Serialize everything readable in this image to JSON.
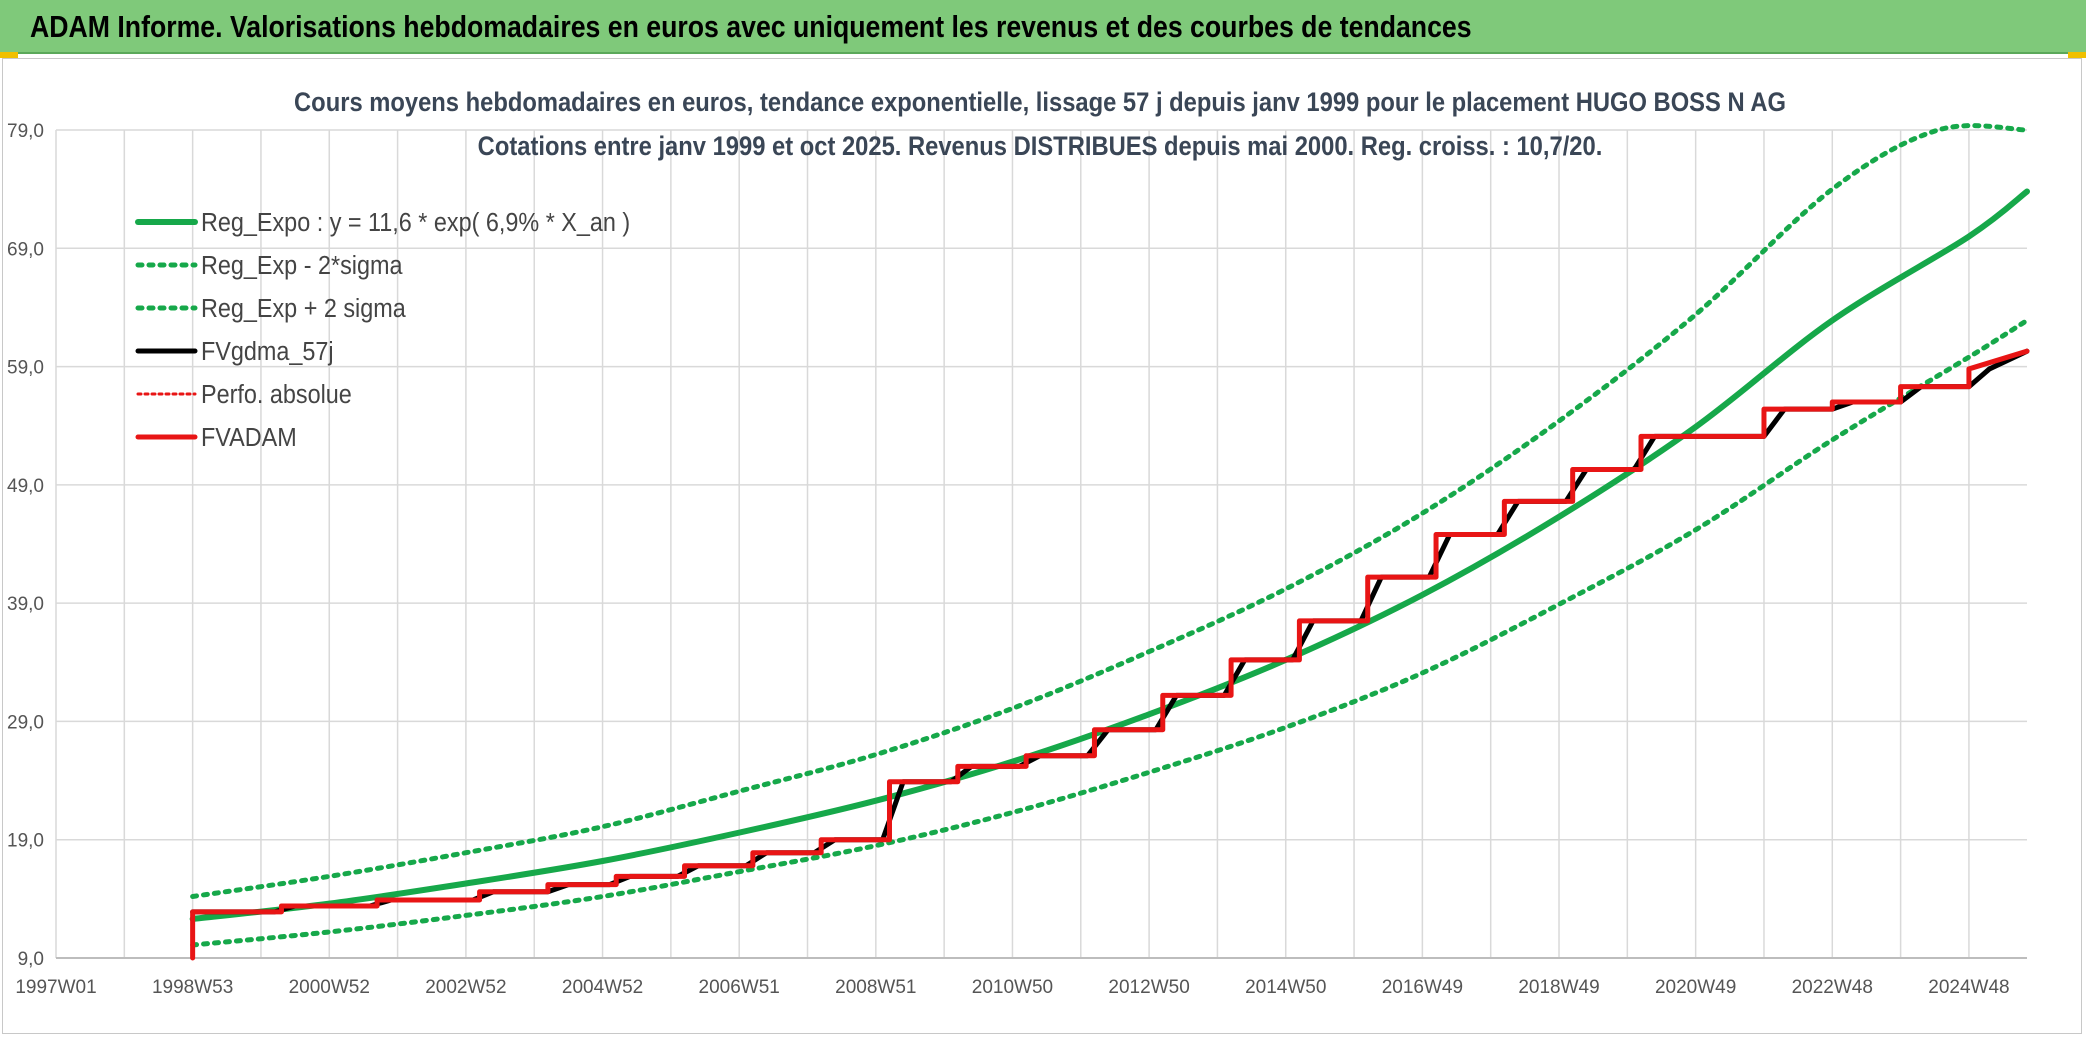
{
  "header": {
    "title": "ADAM Informe. Valorisations hebdomadaires en euros avec uniquement les revenus et des courbes de tendances"
  },
  "chart_data": {
    "type": "line",
    "title_line1": "Cours moyens hebdomadaires en euros, tendance exponentielle, lissage 57 j depuis janv 1999 pour le placement HUGO BOSS N AG",
    "title_line2": "Cotations entre janv 1999 et oct 2025. Revenus DISTRIBUES depuis mai 2000. Reg. croiss. : 10,7/20.",
    "ylim": [
      9,
      79
    ],
    "xlim": [
      1997.0,
      2025.85
    ],
    "y_ticks": [
      "79,0",
      "69,0",
      "59,0",
      "49,0",
      "39,0",
      "29,0",
      "19,0",
      "9,0"
    ],
    "y_tick_values": [
      79,
      69,
      59,
      49,
      39,
      29,
      19,
      9
    ],
    "x_ticks": [
      "1997W01",
      "1998W53",
      "2000W52",
      "2002W52",
      "2004W52",
      "2006W51",
      "2008W51",
      "2010W50",
      "2012W50",
      "2014W50",
      "2016W49",
      "2018W49",
      "2020W49",
      "2022W48",
      "2024W48"
    ],
    "x_tick_values": [
      1997.0,
      1999.0,
      2001.0,
      2003.0,
      2005.0,
      2007.0,
      2009.0,
      2011.0,
      2013.0,
      2015.0,
      2017.0,
      2019.0,
      2021.0,
      2023.0,
      2025.0
    ],
    "legend_position": "top-left",
    "grid": true,
    "colors": {
      "green": "#16a84a",
      "red": "#e81515",
      "black": "#000000"
    },
    "series": [
      {
        "name": "Reg_Expo : y = 11,6 * exp( 6,9% *  X_an )",
        "style": "solid-green",
        "x": [
          1999.0,
          2001.0,
          2003.0,
          2005.0,
          2007.0,
          2009.0,
          2011.0,
          2013.0,
          2015.0,
          2017.0,
          2019.0,
          2021.0,
          2023.0,
          2025.0,
          2025.85
        ],
        "y": [
          12.3,
          13.6,
          15.3,
          17.2,
          19.6,
          22.3,
          25.6,
          29.6,
          34.2,
          39.7,
          46.3,
          53.9,
          62.9,
          70.0,
          73.8
        ]
      },
      {
        "name": "Reg_Exp - 2*sigma",
        "style": "dotted-green",
        "x": [
          1999.0,
          2001.0,
          2003.0,
          2005.0,
          2007.0,
          2009.0,
          2011.0,
          2013.0,
          2015.0,
          2017.0,
          2019.0,
          2021.0,
          2023.0,
          2025.0,
          2025.85
        ],
        "y": [
          10.1,
          11.2,
          12.6,
          14.2,
          16.3,
          18.5,
          21.3,
          24.7,
          28.5,
          33.1,
          38.9,
          45.2,
          52.8,
          59.8,
          62.9
        ]
      },
      {
        "name": "Reg_Exp + 2 sigma",
        "style": "dotted-green",
        "x": [
          1999.0,
          2001.0,
          2003.0,
          2005.0,
          2007.0,
          2009.0,
          2011.0,
          2013.0,
          2015.0,
          2017.0,
          2019.0,
          2021.0,
          2023.0,
          2024.55,
          2025.85
        ],
        "y": [
          14.2,
          15.9,
          17.9,
          20.1,
          23.1,
          26.2,
          30.1,
          34.9,
          40.2,
          46.6,
          54.4,
          63.4,
          74.0,
          79.0,
          79.0
        ]
      },
      {
        "name": "FVgdma_57j",
        "style": "solid-black",
        "x": [
          1999.0,
          2000.2,
          2000.5,
          2001.6,
          2001.9,
          2003.1,
          2003.4,
          2004.2,
          2004.5,
          2005.1,
          2005.4,
          2006.1,
          2006.4,
          2007.1,
          2007.4,
          2008.1,
          2008.4,
          2009.1,
          2009.4,
          2010.1,
          2010.4,
          2011.1,
          2011.4,
          2012.1,
          2012.4,
          2013.1,
          2013.4,
          2014.1,
          2014.4,
          2015.1,
          2015.4,
          2016.1,
          2016.4,
          2017.1,
          2017.4,
          2018.1,
          2018.4,
          2019.1,
          2019.4,
          2020.1,
          2020.4,
          2022.0,
          2022.3,
          2023.0,
          2023.3,
          2024.0,
          2024.3,
          2025.0,
          2025.3,
          2025.85
        ],
        "y": [
          12.9,
          12.9,
          13.4,
          13.4,
          13.9,
          13.9,
          14.6,
          14.6,
          15.2,
          15.2,
          15.9,
          15.9,
          16.8,
          16.8,
          17.9,
          17.9,
          19.0,
          19.0,
          23.9,
          23.9,
          25.2,
          25.2,
          26.1,
          26.1,
          28.3,
          28.3,
          31.2,
          31.2,
          34.2,
          34.2,
          37.5,
          37.5,
          41.2,
          41.2,
          44.8,
          44.8,
          47.6,
          47.6,
          50.3,
          50.3,
          53.1,
          53.1,
          55.4,
          55.4,
          56.0,
          56.0,
          57.3,
          57.3,
          58.8,
          60.3
        ]
      },
      {
        "name": "Perfo. absolue",
        "style": "dotted-red",
        "x": [],
        "y": []
      },
      {
        "name": "FVADAM",
        "style": "solid-red",
        "x": [
          1999.0,
          1999.0,
          2000.3,
          2000.3,
          2001.7,
          2001.7,
          2003.2,
          2003.2,
          2004.2,
          2004.2,
          2005.2,
          2005.2,
          2006.2,
          2006.2,
          2007.2,
          2007.2,
          2008.2,
          2008.2,
          2009.2,
          2009.2,
          2010.2,
          2010.2,
          2011.2,
          2011.2,
          2012.2,
          2012.2,
          2013.2,
          2013.2,
          2014.2,
          2014.2,
          2015.2,
          2015.2,
          2016.2,
          2016.2,
          2017.2,
          2017.2,
          2018.2,
          2018.2,
          2019.2,
          2019.2,
          2020.2,
          2020.2,
          2022.0,
          2022.0,
          2023.0,
          2023.0,
          2024.0,
          2024.0,
          2025.0,
          2025.0,
          2025.85
        ],
        "y": [
          9.0,
          12.9,
          12.9,
          13.4,
          13.4,
          13.9,
          13.9,
          14.6,
          14.6,
          15.2,
          15.2,
          15.9,
          15.9,
          16.8,
          16.8,
          17.9,
          17.9,
          19.0,
          19.0,
          23.9,
          23.9,
          25.2,
          25.2,
          26.1,
          26.1,
          28.3,
          28.3,
          31.2,
          31.2,
          34.2,
          34.2,
          37.5,
          37.5,
          41.2,
          41.2,
          44.8,
          44.8,
          47.6,
          47.6,
          50.3,
          50.3,
          53.1,
          53.1,
          55.4,
          55.4,
          56.0,
          56.0,
          57.3,
          57.3,
          58.8,
          60.3
        ]
      }
    ]
  }
}
